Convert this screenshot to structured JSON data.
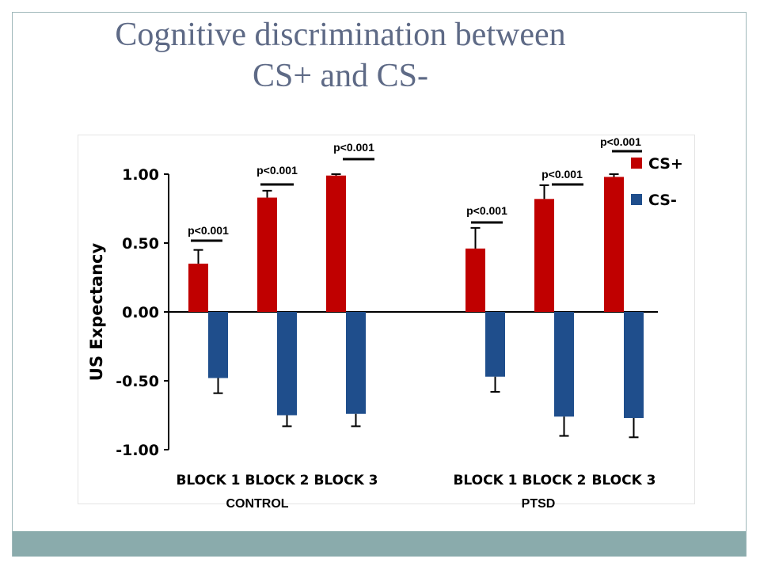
{
  "slide": {
    "title_line1": "Cognitive discrimination between",
    "title_line2": "CS+ and CS-",
    "colors": {
      "title": "#5e6a86",
      "frame": "#9fb8ba",
      "footer": "#8aabac"
    }
  },
  "chart_data": {
    "type": "bar",
    "title": "",
    "ylabel": "US Expectancy",
    "xlabel": "",
    "ylim": [
      -1.0,
      1.0
    ],
    "yticks": [
      "1.00",
      "0.50",
      "0.00",
      "-0.50",
      "-1.00"
    ],
    "ytick_values": [
      1.0,
      0.5,
      0.0,
      -0.5,
      -1.0
    ],
    "grid": false,
    "legend_position": "top-right",
    "group_labels": [
      "CONTROL",
      "PTSD"
    ],
    "categories": [
      "BLOCK 1",
      "BLOCK 2",
      "BLOCK 3",
      "BLOCK 1",
      "BLOCK 2",
      "BLOCK 3"
    ],
    "series": [
      {
        "name": "CS+",
        "color": "#c00000",
        "values": [
          0.35,
          0.83,
          0.99,
          0.46,
          0.82,
          0.98
        ],
        "errors": [
          0.1,
          0.05,
          0.01,
          0.15,
          0.1,
          0.02
        ]
      },
      {
        "name": "CS-",
        "color": "#1f4e8c",
        "values": [
          -0.48,
          -0.75,
          -0.74,
          -0.47,
          -0.76,
          -0.77
        ],
        "errors": [
          0.11,
          0.08,
          0.09,
          0.11,
          0.14,
          0.14
        ]
      }
    ],
    "annotations": [
      "p<0.001",
      "p<0.001",
      "p<0.001",
      "p<0.001",
      "p<0.001",
      "p<0.001"
    ]
  }
}
